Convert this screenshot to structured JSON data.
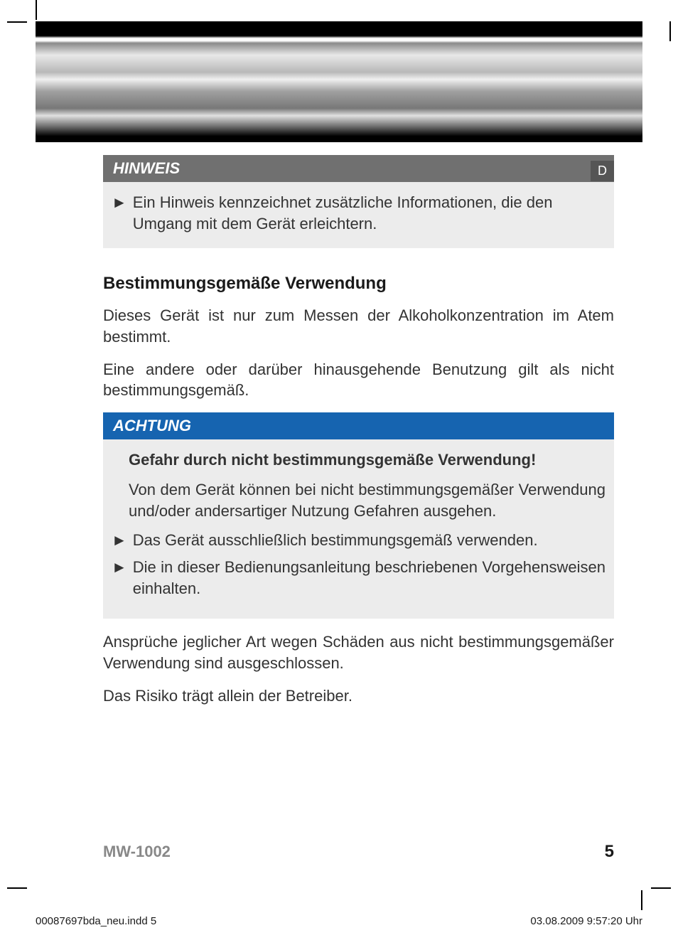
{
  "lang_badge": "D",
  "notice": {
    "header": "HINWEIS",
    "bullet": "►",
    "text": "Ein Hinweis kennzeichnet zusätzliche Informationen, die den Umgang mit dem Gerät erleichtern."
  },
  "section_heading": "Bestimmungsgemäße Verwendung",
  "para1": "Dieses Gerät ist nur zum Messen der Alkoholkonzentration im Atem bestimmt.",
  "para2": "Eine andere oder darüber hinausgehende Benutzung gilt als nicht bestimmungsgemäß.",
  "caution": {
    "header": "ACHTUNG",
    "subhead": "Gefahr durch nicht bestimmungsgemäße Verwendung!",
    "para": "Von dem Gerät können bei nicht bestimmungsgemäßer Verwendung und/oder andersartiger Nutzung Gefahren ausgehen.",
    "bullet": "►",
    "item1": "Das Gerät ausschließlich bestimmungsgemäß verwenden.",
    "item2": "Die in dieser Bedienungsanleitung beschriebenen Vorgehensweisen einhalten."
  },
  "para3": "Ansprüche jeglicher Art wegen Schäden aus nicht bestimmungsgemäßer Verwendung sind ausgeschlossen.",
  "para4": "Das Risiko trägt allein der Betreiber.",
  "footer_model": "MW-1002",
  "footer_page": "5",
  "meta_file": "00087697bda_neu.indd   5",
  "meta_date": "03.08.2009   9:57:20 Uhr",
  "colors": {
    "notice_header_bg": "#707070",
    "caution_header_bg": "#1664b0",
    "box_bg": "#ececec",
    "lang_badge_bg": "#555555",
    "footer_model_color": "#888888"
  }
}
